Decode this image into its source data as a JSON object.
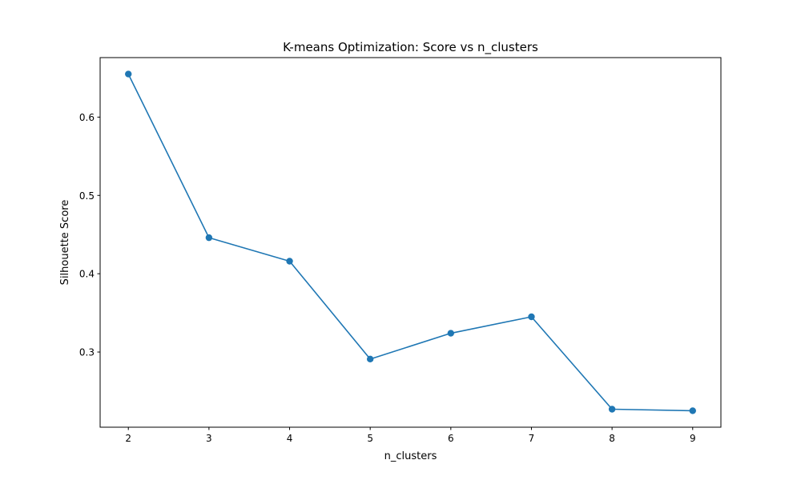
{
  "chart_data": {
    "type": "line",
    "title": "K-means Optimization: Score vs n_clusters",
    "xlabel": "n_clusters",
    "ylabel": "Silhouette Score",
    "x": [
      2,
      3,
      4,
      5,
      6,
      7,
      8,
      9
    ],
    "series": [
      {
        "values": [
          0.655,
          0.446,
          0.416,
          0.291,
          0.324,
          0.345,
          0.227,
          0.225
        ],
        "color": "#1f77b4",
        "marker": "circle"
      }
    ],
    "xlim": [
      1.65,
      9.35
    ],
    "ylim": [
      0.204,
      0.676
    ],
    "x_ticks": [
      "2",
      "3",
      "4",
      "5",
      "6",
      "7",
      "8",
      "9"
    ],
    "y_ticks": [
      "0.3",
      "0.4",
      "0.5",
      "0.6"
    ],
    "grid": false,
    "legend": "none"
  }
}
